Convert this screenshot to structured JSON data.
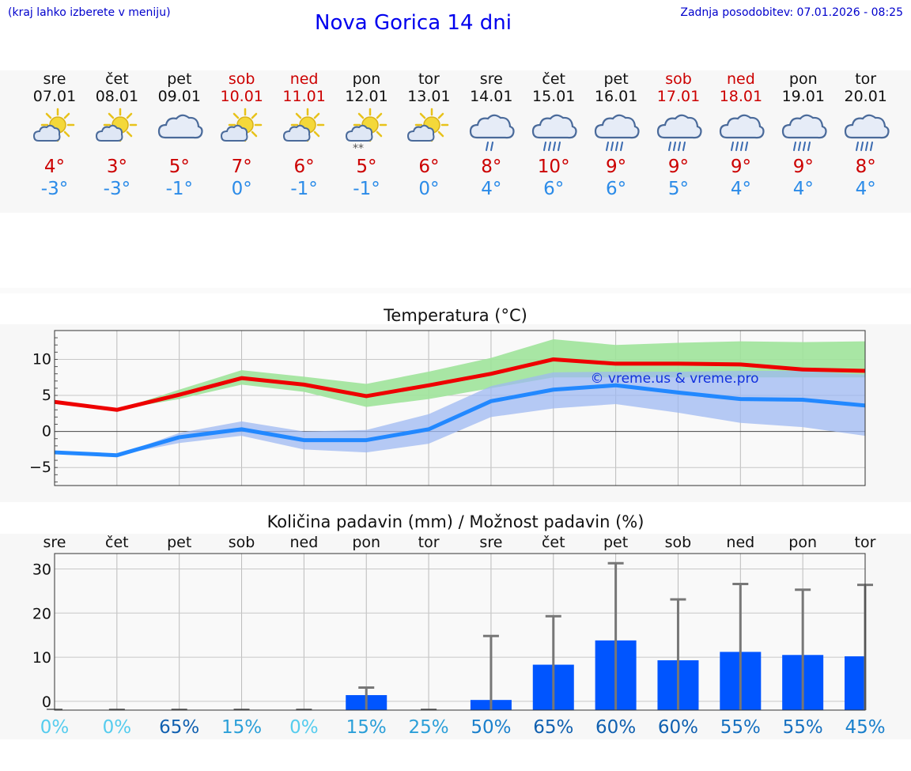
{
  "header": {
    "left_note": "(kraj lahko izberete v meniju)",
    "title": "Nova Gorica 14 dni",
    "last_update": "Zadnja posodobitev: 07.01.2026 - 08:25"
  },
  "days": [
    {
      "name": "sre",
      "date": "07.01",
      "weekend": false,
      "icon": "sun-cloud-icon",
      "max": "4°",
      "min": "-3°"
    },
    {
      "name": "čet",
      "date": "08.01",
      "weekend": false,
      "icon": "sun-cloud-icon",
      "max": "3°",
      "min": "-3°"
    },
    {
      "name": "pet",
      "date": "09.01",
      "weekend": false,
      "icon": "cloud-icon",
      "max": "5°",
      "min": "-1°"
    },
    {
      "name": "sob",
      "date": "10.01",
      "weekend": true,
      "icon": "sun-cloud-icon",
      "max": "7°",
      "min": "0°"
    },
    {
      "name": "ned",
      "date": "11.01",
      "weekend": true,
      "icon": "sun-cloud-icon",
      "max": "6°",
      "min": "-1°"
    },
    {
      "name": "pon",
      "date": "12.01",
      "weekend": false,
      "icon": "sun-cloud-snow-icon",
      "max": "5°",
      "min": "-1°"
    },
    {
      "name": "tor",
      "date": "13.01",
      "weekend": false,
      "icon": "sun-cloud-icon",
      "max": "6°",
      "min": "0°"
    },
    {
      "name": "sre",
      "date": "14.01",
      "weekend": false,
      "icon": "cloud-light-rain-icon",
      "max": "8°",
      "min": "4°"
    },
    {
      "name": "čet",
      "date": "15.01",
      "weekend": false,
      "icon": "cloud-rain-icon",
      "max": "10°",
      "min": "6°"
    },
    {
      "name": "pet",
      "date": "16.01",
      "weekend": false,
      "icon": "cloud-rain-icon",
      "max": "9°",
      "min": "6°"
    },
    {
      "name": "sob",
      "date": "17.01",
      "weekend": true,
      "icon": "cloud-rain-icon",
      "max": "9°",
      "min": "5°"
    },
    {
      "name": "ned",
      "date": "18.01",
      "weekend": true,
      "icon": "cloud-rain-icon",
      "max": "9°",
      "min": "4°"
    },
    {
      "name": "pon",
      "date": "19.01",
      "weekend": false,
      "icon": "cloud-rain-icon",
      "max": "9°",
      "min": "4°"
    },
    {
      "name": "tor",
      "date": "20.01",
      "weekend": false,
      "icon": "cloud-rain-icon",
      "max": "8°",
      "min": "4°"
    }
  ],
  "colors": {
    "max_line": "#ee0000",
    "min_line": "#2288ff",
    "max_band": "#9fe39a",
    "min_band": "#9db8f2",
    "bars": "#0055ff",
    "whisker": "#777777",
    "weekend_text": "#cc0000"
  },
  "chart_data": [
    {
      "type": "line",
      "title": "Temperatura (°C)",
      "watermark": "© vreme.us & vreme.pro",
      "x": [
        0,
        1,
        2,
        3,
        4,
        5,
        6,
        7,
        8,
        9,
        10,
        11,
        12,
        13
      ],
      "yticks": [
        10,
        5,
        0,
        -5
      ],
      "yticklabels": [
        "10",
        "5",
        "0",
        "−5"
      ],
      "ylim": [
        -7.5,
        14
      ],
      "grid": true,
      "series": [
        {
          "name": "max",
          "values": [
            4.1,
            3.0,
            5.1,
            7.4,
            6.5,
            4.9,
            6.4,
            8.0,
            10.0,
            9.4,
            9.4,
            9.3,
            8.6,
            8.4
          ],
          "band_low": [
            4.1,
            3.0,
            4.5,
            6.5,
            5.5,
            3.4,
            4.5,
            6.0,
            7.5,
            7.5,
            7.5,
            7.5,
            7.5,
            7.5
          ],
          "band_high": [
            4.1,
            3.0,
            5.8,
            8.5,
            7.6,
            6.6,
            8.3,
            10.2,
            12.8,
            12.0,
            12.3,
            12.5,
            12.4,
            12.5
          ]
        },
        {
          "name": "min",
          "values": [
            -2.9,
            -3.3,
            -0.8,
            0.3,
            -1.2,
            -1.2,
            0.3,
            4.2,
            5.8,
            6.4,
            5.4,
            4.5,
            4.4,
            3.6
          ],
          "band_low": [
            -2.9,
            -3.3,
            -1.6,
            -0.6,
            -2.5,
            -2.9,
            -1.7,
            2.0,
            3.2,
            3.8,
            2.6,
            1.2,
            0.6,
            -0.6
          ],
          "band_high": [
            -2.9,
            -3.3,
            -0.2,
            1.4,
            0.0,
            0.2,
            2.4,
            6.3,
            8.2,
            8.3,
            8.3,
            8.4,
            8.4,
            7.9
          ]
        }
      ]
    },
    {
      "type": "bar",
      "title": "Količina padavin (mm) / Možnost padavin (%)",
      "categories": [
        "sre",
        "čet",
        "pet",
        "sob",
        "ned",
        "pon",
        "tor",
        "sre",
        "čet",
        "pet",
        "sob",
        "ned",
        "pon",
        "tor"
      ],
      "values": [
        0,
        0,
        0,
        0,
        0,
        1.4,
        0,
        0.3,
        8.3,
        13.8,
        9.3,
        11.2,
        10.5,
        10.2
      ],
      "upper": [
        0,
        0,
        0,
        0,
        0,
        3.1,
        0,
        14.8,
        19.3,
        31.3,
        23.1,
        26.6,
        25.3,
        26.4
      ],
      "probabilities": [
        "0%",
        "0%",
        "65%",
        "15%",
        "0%",
        "15%",
        "25%",
        "50%",
        "65%",
        "60%",
        "60%",
        "55%",
        "55%",
        "45%"
      ],
      "probability_colors": [
        "#55ccee",
        "#55ccee",
        "#1060b0",
        "#2b9fd8",
        "#55ccee",
        "#2b9fd8",
        "#2b9fd8",
        "#1a80cc",
        "#1060b0",
        "#1060b0",
        "#1060b0",
        "#1570c0",
        "#1570c0",
        "#1a80cc"
      ],
      "yticks": [
        30,
        20,
        10,
        0
      ],
      "yticklabels": [
        "30",
        "20",
        "10",
        "0"
      ],
      "ylim": [
        -2,
        33.5
      ],
      "grid": true
    }
  ]
}
